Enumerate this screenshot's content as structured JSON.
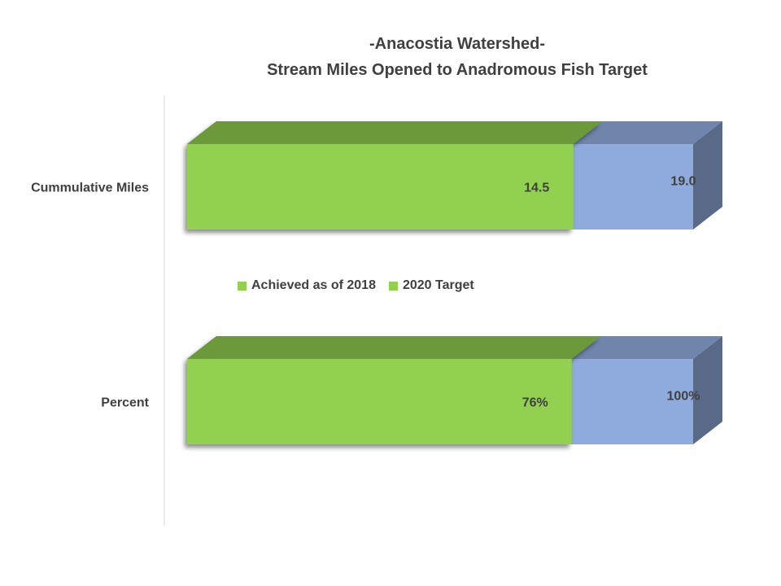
{
  "chart_data": {
    "type": "bar",
    "orientation": "horizontal",
    "style": "3d-overlapped",
    "title_lines": [
      "-Anacostia Watershed-",
      "Stream Miles Opened to Anadromous Fish Target"
    ],
    "categories": [
      "Cummulative Miles",
      "Percent"
    ],
    "series": [
      {
        "name": "Achieved as of 2018",
        "values": [
          14.5,
          76
        ],
        "labels": [
          "14.5",
          "76%"
        ],
        "color": "#92D050"
      },
      {
        "name": "2020 Target",
        "values": [
          19.0,
          100
        ],
        "labels": [
          "19.0",
          "100%"
        ],
        "color": "#8FAADC"
      }
    ],
    "legend_position": "center",
    "grid": false
  }
}
